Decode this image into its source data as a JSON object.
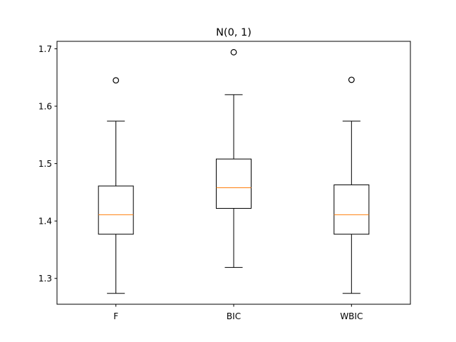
{
  "chart_data": {
    "type": "box",
    "title": "N(0, 1)",
    "xlabel": "",
    "ylabel": "",
    "ylim": [
      1.255,
      1.713
    ],
    "yticks": [
      1.3,
      1.4,
      1.5,
      1.6,
      1.7
    ],
    "ytick_labels": [
      "1.3",
      "1.4",
      "1.5",
      "1.6",
      "1.7"
    ],
    "categories": [
      "F",
      "BIC",
      "WBIC"
    ],
    "boxes": [
      {
        "label": "F",
        "whisker_low": 1.274,
        "q1": 1.377,
        "median": 1.411,
        "q3": 1.461,
        "whisker_high": 1.574,
        "outliers": [
          1.645
        ]
      },
      {
        "label": "BIC",
        "whisker_low": 1.319,
        "q1": 1.422,
        "median": 1.458,
        "q3": 1.508,
        "whisker_high": 1.62,
        "outliers": [
          1.694
        ]
      },
      {
        "label": "WBIC",
        "whisker_low": 1.274,
        "q1": 1.377,
        "median": 1.411,
        "q3": 1.463,
        "whisker_high": 1.574,
        "outliers": [
          1.646
        ]
      }
    ],
    "grid": false,
    "colors": {
      "box": "#000000",
      "median": "#ff7f0e",
      "outlier": "#000000"
    }
  }
}
